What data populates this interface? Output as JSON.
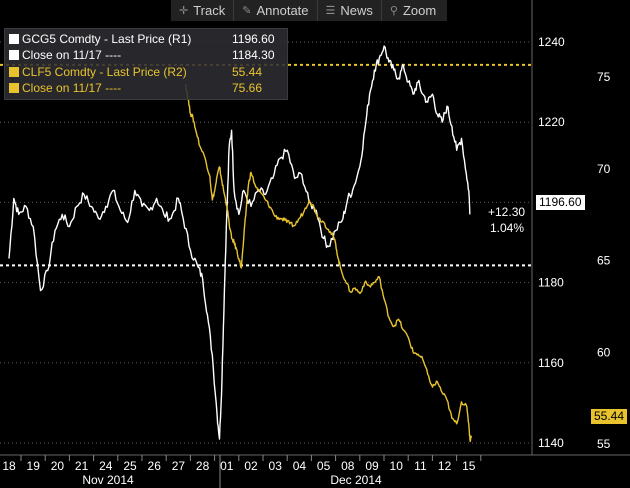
{
  "toolbar": {
    "track_label": "Track",
    "annotate_label": "Annotate",
    "news_label": "News",
    "zoom_label": "Zoom"
  },
  "legend": {
    "items": [
      {
        "label": "GCG5 Comdty - Last Price (R1)",
        "value": "1196.60",
        "color": "#ffffff"
      },
      {
        "label": "Close on 11/17 ----",
        "value": "1184.30",
        "color": "#ffffff"
      },
      {
        "label": "CLF5 Comdty - Last Price (R2)",
        "value": "55.44",
        "color": "#e8c32e"
      },
      {
        "label": "Close on 11/17 ----",
        "value": "75.66",
        "color": "#e8c32e"
      }
    ]
  },
  "annotation": {
    "change": "+12.30",
    "pct": "1.04%"
  },
  "tags": {
    "gold_last": "1196.60",
    "oil_last": "55.44"
  },
  "chart_data": {
    "type": "line",
    "x_labels": [
      "18",
      "19",
      "20",
      "21",
      "24",
      "25",
      "26",
      "27",
      "28",
      "01",
      "02",
      "03",
      "04",
      "05",
      "08",
      "09",
      "10",
      "11",
      "12",
      "15"
    ],
    "x_groups": [
      "Nov 2014",
      "Dec 2014"
    ],
    "y1_ticks": [
      1140,
      1160,
      1180,
      1200,
      1220,
      1240
    ],
    "y2_ticks": [
      55,
      60,
      65,
      70,
      75
    ],
    "y1_lim": [
      1137,
      1245
    ],
    "y2_lim": [
      54.4,
      78.0
    ],
    "ref_lines": {
      "gold_close": 1184.3,
      "oil_close": 75.66
    },
    "series": [
      {
        "name": "GCG5 Comdty - Last Price (R1)",
        "axis": "R1",
        "color": "#ffffff",
        "points": [
          [
            0,
            1186
          ],
          [
            0.2,
            1201
          ],
          [
            0.4,
            1197
          ],
          [
            0.7,
            1199
          ],
          [
            1.0,
            1194
          ],
          [
            1.3,
            1178
          ],
          [
            1.6,
            1183
          ],
          [
            1.9,
            1193
          ],
          [
            2.2,
            1197
          ],
          [
            2.5,
            1194
          ],
          [
            2.8,
            1199
          ],
          [
            3.1,
            1202
          ],
          [
            3.4,
            1199
          ],
          [
            3.7,
            1196
          ],
          [
            4.0,
            1199
          ],
          [
            4.3,
            1203
          ],
          [
            4.6,
            1198
          ],
          [
            4.9,
            1195
          ],
          [
            5.2,
            1203
          ],
          [
            5.5,
            1199
          ],
          [
            5.8,
            1198
          ],
          [
            6.1,
            1201
          ],
          [
            6.4,
            1197
          ],
          [
            6.7,
            1196
          ],
          [
            7.0,
            1201
          ],
          [
            7.2,
            1196
          ],
          [
            7.5,
            1188
          ],
          [
            7.8,
            1184
          ],
          [
            8.0,
            1181
          ],
          [
            8.2,
            1172
          ],
          [
            8.4,
            1162
          ],
          [
            8.6,
            1147
          ],
          [
            8.7,
            1141
          ],
          [
            8.8,
            1156
          ],
          [
            8.9,
            1178
          ],
          [
            9.0,
            1197
          ],
          [
            9.1,
            1214
          ],
          [
            9.2,
            1218
          ],
          [
            9.3,
            1203
          ],
          [
            9.5,
            1197
          ],
          [
            9.7,
            1203
          ],
          [
            10.0,
            1199
          ],
          [
            10.3,
            1203
          ],
          [
            10.6,
            1202
          ],
          [
            10.9,
            1206
          ],
          [
            11.2,
            1211
          ],
          [
            11.5,
            1213
          ],
          [
            11.8,
            1206
          ],
          [
            12.1,
            1207
          ],
          [
            12.4,
            1200
          ],
          [
            12.7,
            1198
          ],
          [
            13.0,
            1191
          ],
          [
            13.2,
            1189
          ],
          [
            13.5,
            1193
          ],
          [
            13.8,
            1196
          ],
          [
            14.0,
            1201
          ],
          [
            14.2,
            1203
          ],
          [
            14.5,
            1209
          ],
          [
            14.7,
            1218
          ],
          [
            14.9,
            1227
          ],
          [
            15.1,
            1233
          ],
          [
            15.3,
            1236
          ],
          [
            15.5,
            1239
          ],
          [
            15.7,
            1235
          ],
          [
            15.9,
            1233
          ],
          [
            16.1,
            1231
          ],
          [
            16.3,
            1234
          ],
          [
            16.5,
            1230
          ],
          [
            16.7,
            1227
          ],
          [
            16.9,
            1230
          ],
          [
            17.1,
            1227
          ],
          [
            17.3,
            1225
          ],
          [
            17.5,
            1227
          ],
          [
            17.7,
            1222
          ],
          [
            17.9,
            1220
          ],
          [
            18.1,
            1224
          ],
          [
            18.3,
            1219
          ],
          [
            18.5,
            1213
          ],
          [
            18.7,
            1216
          ],
          [
            18.9,
            1207
          ],
          [
            19.0,
            1203
          ],
          [
            19.05,
            1197
          ]
        ]
      },
      {
        "name": "CLF5 Comdty - Last Price (R2)",
        "axis": "R2",
        "color": "#e8c32e",
        "points": [
          [
            7.3,
            74.6
          ],
          [
            7.4,
            73.8
          ],
          [
            7.5,
            73.0
          ],
          [
            7.6,
            72.8
          ],
          [
            7.7,
            72.2
          ],
          [
            7.9,
            71.2
          ],
          [
            8.1,
            70.6
          ],
          [
            8.3,
            69.6
          ],
          [
            8.4,
            68.3
          ],
          [
            8.5,
            68.8
          ],
          [
            8.6,
            69.6
          ],
          [
            8.7,
            70.1
          ],
          [
            8.8,
            69.3
          ],
          [
            8.9,
            68.6
          ],
          [
            9.0,
            68.0
          ],
          [
            9.1,
            67.0
          ],
          [
            9.2,
            66.2
          ],
          [
            9.3,
            66.0
          ],
          [
            9.4,
            65.6
          ],
          [
            9.5,
            65.1
          ],
          [
            9.6,
            64.6
          ],
          [
            9.7,
            66.2
          ],
          [
            9.8,
            67.8
          ],
          [
            9.9,
            69.2
          ],
          [
            10.0,
            69.8
          ],
          [
            10.2,
            69.0
          ],
          [
            10.4,
            68.7
          ],
          [
            10.6,
            68.3
          ],
          [
            10.8,
            67.9
          ],
          [
            11.0,
            67.4
          ],
          [
            11.2,
            67.3
          ],
          [
            11.4,
            67.2
          ],
          [
            11.6,
            67.0
          ],
          [
            11.8,
            66.9
          ],
          [
            12.0,
            67.3
          ],
          [
            12.2,
            67.7
          ],
          [
            12.4,
            68.3
          ],
          [
            12.6,
            67.9
          ],
          [
            12.8,
            67.3
          ],
          [
            13.0,
            67.1
          ],
          [
            13.2,
            66.7
          ],
          [
            13.4,
            66.3
          ],
          [
            13.5,
            65.9
          ],
          [
            13.6,
            65.1
          ],
          [
            13.7,
            64.6
          ],
          [
            13.9,
            63.9
          ],
          [
            14.1,
            63.3
          ],
          [
            14.3,
            63.5
          ],
          [
            14.5,
            63.2
          ],
          [
            14.7,
            63.8
          ],
          [
            14.9,
            63.6
          ],
          [
            15.1,
            63.8
          ],
          [
            15.3,
            64.1
          ],
          [
            15.5,
            62.9
          ],
          [
            15.7,
            61.9
          ],
          [
            15.9,
            61.4
          ],
          [
            16.1,
            61.8
          ],
          [
            16.3,
            61.2
          ],
          [
            16.5,
            60.8
          ],
          [
            16.7,
            60.0
          ],
          [
            16.9,
            59.9
          ],
          [
            17.1,
            59.6
          ],
          [
            17.3,
            58.8
          ],
          [
            17.5,
            58.1
          ],
          [
            17.7,
            58.4
          ],
          [
            17.9,
            57.8
          ],
          [
            18.1,
            57.4
          ],
          [
            18.3,
            56.4
          ],
          [
            18.5,
            56.1
          ],
          [
            18.7,
            57.3
          ],
          [
            18.9,
            57.1
          ],
          [
            19.0,
            56.1
          ],
          [
            19.05,
            55.2
          ],
          [
            19.1,
            55.44
          ]
        ]
      }
    ]
  }
}
